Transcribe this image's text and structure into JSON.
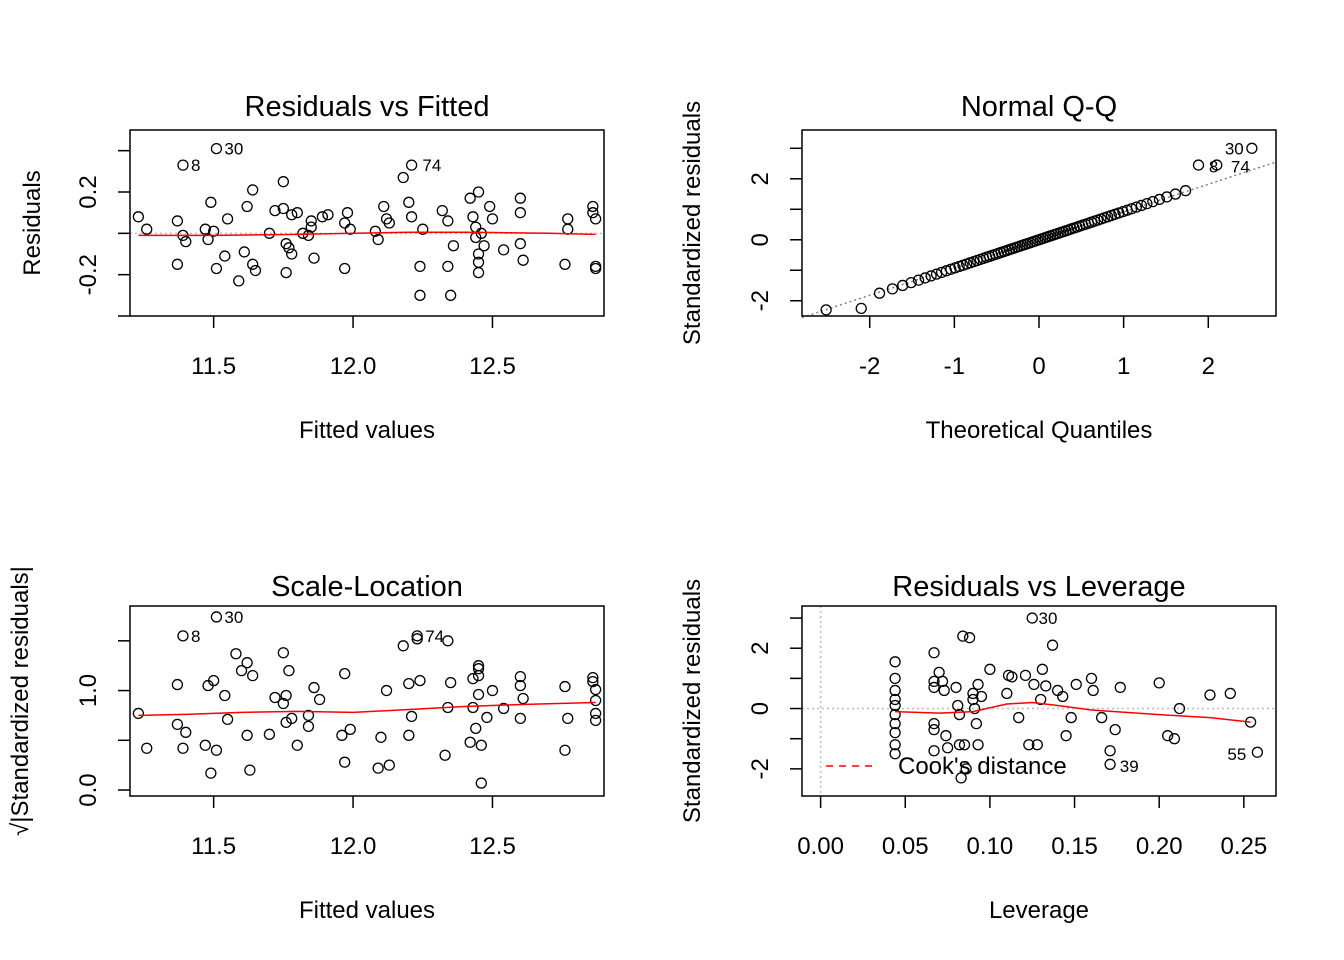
{
  "chart_data": [
    {
      "type": "scatter",
      "title": "Residuals vs Fitted",
      "xlabel": "Fitted values",
      "ylabel": "Residuals",
      "xlim": [
        11.2,
        12.9
      ],
      "ylim": [
        -0.4,
        0.5
      ],
      "xticks": [
        11.5,
        12.0,
        12.5
      ],
      "xtick_labels": [
        "11.5",
        "12.0",
        "12.5"
      ],
      "yticks": [
        -0.2,
        0.2
      ],
      "ytick_labels": [
        "-0.2",
        "0.2"
      ],
      "reference_line": {
        "y": 0,
        "color": "#bebebe",
        "dotted": true
      },
      "smooth_color": "#ff0000",
      "point_labels": [
        {
          "label": "30",
          "x": 11.51,
          "y": 0.41
        },
        {
          "label": "8",
          "x": 11.39,
          "y": 0.33
        },
        {
          "label": "74",
          "x": 12.22,
          "y": 0.33
        }
      ],
      "points": [
        [
          11.23,
          0.08
        ],
        [
          11.26,
          0.02
        ],
        [
          11.37,
          0.06
        ],
        [
          11.37,
          -0.15
        ],
        [
          11.39,
          -0.01
        ],
        [
          11.4,
          -0.04
        ],
        [
          11.39,
          0.33
        ],
        [
          11.47,
          0.02
        ],
        [
          11.49,
          0.15
        ],
        [
          11.48,
          -0.03
        ],
        [
          11.5,
          0.01
        ],
        [
          11.51,
          -0.17
        ],
        [
          11.51,
          0.41
        ],
        [
          11.54,
          -0.11
        ],
        [
          11.55,
          0.07
        ],
        [
          11.59,
          -0.23
        ],
        [
          11.61,
          -0.09
        ],
        [
          11.62,
          0.13
        ],
        [
          11.64,
          -0.15
        ],
        [
          11.65,
          -0.18
        ],
        [
          11.64,
          0.21
        ],
        [
          11.7,
          0.0
        ],
        [
          11.72,
          0.11
        ],
        [
          11.75,
          0.25
        ],
        [
          11.76,
          -0.05
        ],
        [
          11.76,
          -0.19
        ],
        [
          11.75,
          0.12
        ],
        [
          11.78,
          0.09
        ],
        [
          11.77,
          -0.07
        ],
        [
          11.78,
          -0.1
        ],
        [
          11.8,
          0.1
        ],
        [
          11.82,
          0.0
        ],
        [
          11.84,
          -0.01
        ],
        [
          11.85,
          0.06
        ],
        [
          11.85,
          0.03
        ],
        [
          11.86,
          -0.12
        ],
        [
          11.89,
          0.08
        ],
        [
          11.91,
          0.09
        ],
        [
          11.97,
          -0.17
        ],
        [
          11.97,
          0.05
        ],
        [
          11.98,
          0.1
        ],
        [
          11.99,
          0.02
        ],
        [
          12.08,
          0.01
        ],
        [
          12.09,
          -0.03
        ],
        [
          12.11,
          0.13
        ],
        [
          12.12,
          0.07
        ],
        [
          12.13,
          0.05
        ],
        [
          12.18,
          0.27
        ],
        [
          12.2,
          0.15
        ],
        [
          12.21,
          0.08
        ],
        [
          12.21,
          0.33
        ],
        [
          12.24,
          -0.16
        ],
        [
          12.24,
          -0.3
        ],
        [
          12.25,
          0.02
        ],
        [
          12.32,
          0.11
        ],
        [
          12.34,
          0.06
        ],
        [
          12.34,
          -0.16
        ],
        [
          12.35,
          -0.3
        ],
        [
          12.36,
          -0.06
        ],
        [
          12.42,
          0.17
        ],
        [
          12.43,
          0.08
        ],
        [
          12.44,
          0.03
        ],
        [
          12.44,
          -0.02
        ],
        [
          12.45,
          0.2
        ],
        [
          12.45,
          -0.1
        ],
        [
          12.45,
          -0.14
        ],
        [
          12.45,
          -0.19
        ],
        [
          12.46,
          0.0
        ],
        [
          12.47,
          -0.06
        ],
        [
          12.49,
          0.13
        ],
        [
          12.5,
          0.07
        ],
        [
          12.54,
          -0.08
        ],
        [
          12.6,
          0.17
        ],
        [
          12.6,
          0.1
        ],
        [
          12.61,
          -0.13
        ],
        [
          12.6,
          -0.05
        ],
        [
          12.76,
          -0.15
        ],
        [
          12.77,
          0.07
        ],
        [
          12.77,
          0.02
        ],
        [
          12.86,
          0.13
        ],
        [
          12.86,
          0.1
        ],
        [
          12.87,
          0.07
        ],
        [
          12.87,
          -0.17
        ],
        [
          12.87,
          -0.16
        ]
      ],
      "smooth": [
        [
          11.23,
          -0.01
        ],
        [
          11.5,
          -0.01
        ],
        [
          11.8,
          -0.005
        ],
        [
          12.0,
          0.0
        ],
        [
          12.2,
          0.005
        ],
        [
          12.4,
          0.005
        ],
        [
          12.5,
          0.004
        ],
        [
          12.7,
          0.0
        ],
        [
          12.87,
          -0.005
        ]
      ]
    },
    {
      "type": "scatter",
      "title": "Normal Q-Q",
      "xlabel": "Theoretical Quantiles",
      "ylabel": "Standardized residuals",
      "xlim": [
        -2.8,
        2.8
      ],
      "ylim": [
        -2.5,
        3.6
      ],
      "xticks": [
        -2,
        -1,
        0,
        1,
        2
      ],
      "xtick_labels": [
        "-2",
        "-1",
        "0",
        "1",
        "2"
      ],
      "yticks": [
        -2,
        0,
        2
      ],
      "ytick_labels": [
        "-2",
        "0",
        "2"
      ],
      "reference_line": {
        "x1": -2.8,
        "y1": -2.55,
        "x2": 2.8,
        "y2": 2.55,
        "color": "#808080",
        "dotted": true
      },
      "point_labels": [
        {
          "label": "30",
          "x": 2.55,
          "y": 3.0
        },
        {
          "label": "8",
          "x": 2.22,
          "y": 2.4
        },
        {
          "label": "74",
          "x": 2.22,
          "y": 2.4
        }
      ]
    },
    {
      "type": "scatter",
      "title": "Scale-Location",
      "xlabel": "Fitted values",
      "ylabel": "√|Standardized residuals|",
      "xlim": [
        11.2,
        12.9
      ],
      "ylim": [
        -0.06,
        1.85
      ],
      "xticks": [
        11.5,
        12.0,
        12.5
      ],
      "xtick_labels": [
        "11.5",
        "12.0",
        "12.5"
      ],
      "yticks": [
        0.0,
        1.0
      ],
      "ytick_labels": [
        "0.0",
        "1.0"
      ],
      "smooth_color": "#ff0000",
      "point_labels": [
        {
          "label": "30",
          "x": 11.51,
          "y": 1.74
        },
        {
          "label": "8",
          "x": 11.39,
          "y": 1.55
        },
        {
          "label": "74",
          "x": 12.23,
          "y": 1.55
        }
      ],
      "points": [
        [
          11.23,
          0.77
        ],
        [
          11.26,
          0.42
        ],
        [
          11.37,
          0.66
        ],
        [
          11.37,
          1.06
        ],
        [
          11.39,
          0.42
        ],
        [
          11.4,
          0.58
        ],
        [
          11.39,
          1.55
        ],
        [
          11.47,
          0.45
        ],
        [
          11.48,
          1.05
        ],
        [
          11.49,
          0.17
        ],
        [
          11.5,
          1.1
        ],
        [
          11.51,
          0.4
        ],
        [
          11.51,
          1.74
        ],
        [
          11.54,
          0.95
        ],
        [
          11.55,
          0.71
        ],
        [
          11.58,
          1.37
        ],
        [
          11.6,
          1.2
        ],
        [
          11.62,
          0.55
        ],
        [
          11.62,
          1.28
        ],
        [
          11.63,
          0.2
        ],
        [
          11.64,
          1.15
        ],
        [
          11.7,
          0.56
        ],
        [
          11.72,
          0.93
        ],
        [
          11.75,
          1.38
        ],
        [
          11.76,
          0.68
        ],
        [
          11.76,
          0.95
        ],
        [
          11.75,
          0.87
        ],
        [
          11.78,
          0.72
        ],
        [
          11.77,
          1.2
        ],
        [
          11.8,
          0.45
        ],
        [
          11.84,
          0.75
        ],
        [
          11.84,
          0.64
        ],
        [
          11.86,
          1.03
        ],
        [
          11.88,
          0.91
        ],
        [
          11.96,
          0.55
        ],
        [
          11.97,
          1.17
        ],
        [
          11.97,
          0.28
        ],
        [
          11.99,
          0.61
        ],
        [
          12.09,
          0.22
        ],
        [
          12.1,
          0.53
        ],
        [
          12.12,
          1.0
        ],
        [
          12.13,
          0.25
        ],
        [
          12.18,
          1.45
        ],
        [
          12.2,
          0.55
        ],
        [
          12.2,
          1.07
        ],
        [
          12.21,
          0.74
        ],
        [
          12.23,
          1.55
        ],
        [
          12.23,
          1.52
        ],
        [
          12.24,
          1.1
        ],
        [
          12.33,
          0.35
        ],
        [
          12.34,
          0.83
        ],
        [
          12.34,
          1.5
        ],
        [
          12.35,
          1.08
        ],
        [
          12.42,
          0.48
        ],
        [
          12.43,
          1.12
        ],
        [
          12.43,
          0.83
        ],
        [
          12.44,
          0.62
        ],
        [
          12.45,
          1.25
        ],
        [
          12.45,
          1.22
        ],
        [
          12.45,
          1.15
        ],
        [
          12.45,
          0.96
        ],
        [
          12.46,
          0.45
        ],
        [
          12.46,
          0.07
        ],
        [
          12.48,
          0.73
        ],
        [
          12.5,
          1.0
        ],
        [
          12.54,
          0.82
        ],
        [
          12.6,
          1.14
        ],
        [
          12.6,
          1.05
        ],
        [
          12.61,
          0.92
        ],
        [
          12.6,
          0.72
        ],
        [
          12.76,
          1.04
        ],
        [
          12.76,
          0.4
        ],
        [
          12.77,
          0.72
        ],
        [
          12.86,
          1.13
        ],
        [
          12.86,
          1.09
        ],
        [
          12.87,
          1.01
        ],
        [
          12.87,
          0.9
        ],
        [
          12.87,
          0.77
        ],
        [
          12.87,
          0.7
        ]
      ],
      "smooth": [
        [
          11.23,
          0.75
        ],
        [
          11.4,
          0.76
        ],
        [
          11.6,
          0.78
        ],
        [
          11.8,
          0.79
        ],
        [
          12.0,
          0.78
        ],
        [
          12.2,
          0.81
        ],
        [
          12.4,
          0.84
        ],
        [
          12.6,
          0.86
        ],
        [
          12.87,
          0.88
        ]
      ]
    },
    {
      "type": "scatter",
      "title": "Residuals vs Leverage",
      "xlabel": "Leverage",
      "ylabel": "Standardized residuals",
      "xlim": [
        -0.011,
        0.269
      ],
      "ylim": [
        -2.9,
        3.4
      ],
      "xticks": [
        0.0,
        0.05,
        0.1,
        0.15,
        0.2,
        0.25
      ],
      "xtick_labels": [
        "0.00",
        "0.05",
        "0.10",
        "0.15",
        "0.20",
        "0.25"
      ],
      "yticks": [
        -2,
        0,
        2
      ],
      "ytick_labels": [
        "-2",
        "0",
        "2"
      ],
      "reference_lines": [
        {
          "x": 0,
          "color": "#bebebe",
          "dotted": true
        },
        {
          "y": 0,
          "color": "#bebebe",
          "dotted": true
        }
      ],
      "smooth_color": "#ff0000",
      "legend": {
        "label": "Cook's distance",
        "line_color": "#ff0000",
        "dashed": true,
        "position": "bottom-left"
      },
      "point_labels": [
        {
          "label": "30",
          "x": 0.124,
          "y": 3.0
        },
        {
          "label": "39",
          "x": 0.172,
          "y": -1.9
        },
        {
          "label": "55",
          "x": 0.258,
          "y": -1.5
        }
      ],
      "points": [
        [
          0.044,
          1.55
        ],
        [
          0.044,
          1.0
        ],
        [
          0.044,
          0.6
        ],
        [
          0.044,
          0.3
        ],
        [
          0.044,
          0.1
        ],
        [
          0.044,
          -0.2
        ],
        [
          0.044,
          -0.5
        ],
        [
          0.044,
          -0.8
        ],
        [
          0.044,
          -1.2
        ],
        [
          0.044,
          -1.5
        ],
        [
          0.067,
          1.85
        ],
        [
          0.067,
          0.9
        ],
        [
          0.067,
          0.7
        ],
        [
          0.067,
          -0.5
        ],
        [
          0.067,
          -0.7
        ],
        [
          0.067,
          -1.4
        ],
        [
          0.07,
          1.2
        ],
        [
          0.072,
          0.9
        ],
        [
          0.073,
          0.6
        ],
        [
          0.074,
          -0.9
        ],
        [
          0.075,
          -1.3
        ],
        [
          0.08,
          0.7
        ],
        [
          0.081,
          0.1
        ],
        [
          0.082,
          -0.2
        ],
        [
          0.082,
          -1.2
        ],
        [
          0.083,
          -2.3
        ],
        [
          0.084,
          2.4
        ],
        [
          0.085,
          -1.2
        ],
        [
          0.086,
          -2.0
        ],
        [
          0.088,
          2.35
        ],
        [
          0.09,
          0.5
        ],
        [
          0.09,
          0.3
        ],
        [
          0.091,
          0.0
        ],
        [
          0.092,
          -0.5
        ],
        [
          0.093,
          -1.2
        ],
        [
          0.093,
          0.8
        ],
        [
          0.095,
          0.4
        ],
        [
          0.1,
          1.3
        ],
        [
          0.11,
          0.5
        ],
        [
          0.111,
          1.1
        ],
        [
          0.113,
          1.05
        ],
        [
          0.117,
          -0.3
        ],
        [
          0.121,
          1.1
        ],
        [
          0.123,
          -1.2
        ],
        [
          0.125,
          3.0
        ],
        [
          0.126,
          0.8
        ],
        [
          0.128,
          -1.2
        ],
        [
          0.13,
          0.3
        ],
        [
          0.131,
          1.3
        ],
        [
          0.133,
          0.75
        ],
        [
          0.137,
          2.1
        ],
        [
          0.14,
          0.6
        ],
        [
          0.143,
          0.4
        ],
        [
          0.145,
          -0.9
        ],
        [
          0.148,
          -0.3
        ],
        [
          0.151,
          0.8
        ],
        [
          0.16,
          1.0
        ],
        [
          0.161,
          0.6
        ],
        [
          0.166,
          -0.3
        ],
        [
          0.171,
          -1.4
        ],
        [
          0.171,
          -1.85
        ],
        [
          0.174,
          -0.7
        ],
        [
          0.177,
          0.7
        ],
        [
          0.2,
          0.85
        ],
        [
          0.205,
          -0.9
        ],
        [
          0.209,
          -1.0
        ],
        [
          0.212,
          0.0
        ],
        [
          0.23,
          0.45
        ],
        [
          0.242,
          0.5
        ],
        [
          0.254,
          -0.45
        ],
        [
          0.258,
          -1.45
        ]
      ],
      "smooth": [
        [
          0.044,
          -0.1
        ],
        [
          0.07,
          -0.15
        ],
        [
          0.09,
          -0.1
        ],
        [
          0.11,
          0.15
        ],
        [
          0.125,
          0.2
        ],
        [
          0.14,
          0.1
        ],
        [
          0.16,
          -0.05
        ],
        [
          0.2,
          -0.2
        ],
        [
          0.23,
          -0.3
        ],
        [
          0.254,
          -0.45
        ]
      ]
    }
  ]
}
